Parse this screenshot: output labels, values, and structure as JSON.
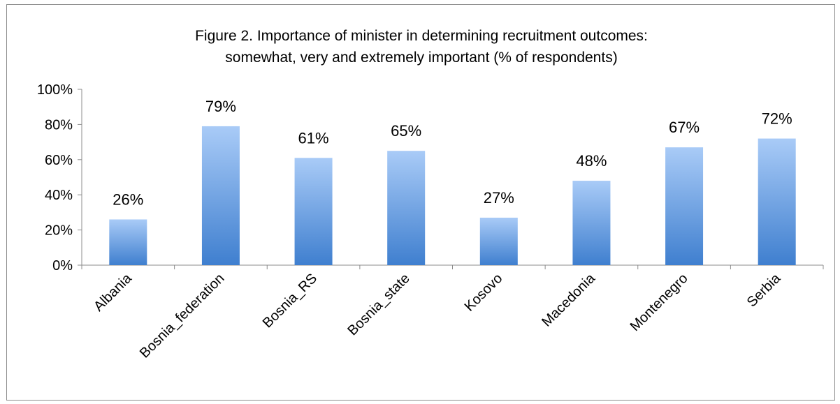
{
  "chart_data": {
    "type": "bar",
    "title_lines": [
      "Figure 2. Importance of minister in determining recruitment outcomes:",
      "somewhat, very and extremely important (% of respondents)"
    ],
    "categories": [
      "Albania",
      "Bosnia_federation",
      "Bosnia_RS",
      "Bosnia_state",
      "Kosovo",
      "Macedonia",
      "Montenegro",
      "Serbia"
    ],
    "values": [
      26,
      79,
      61,
      65,
      27,
      48,
      67,
      72
    ],
    "value_labels": [
      "26%",
      "79%",
      "61%",
      "65%",
      "27%",
      "48%",
      "67%",
      "72%"
    ],
    "ylim": [
      0,
      100
    ],
    "yticks": [
      0,
      20,
      40,
      60,
      80,
      100
    ],
    "ytick_labels": [
      "0%",
      "20%",
      "40%",
      "60%",
      "80%",
      "100%"
    ],
    "grid": false,
    "legend": "none",
    "bar_color_top": "#a9cbf7",
    "bar_color_bottom": "#3f7fcf"
  }
}
